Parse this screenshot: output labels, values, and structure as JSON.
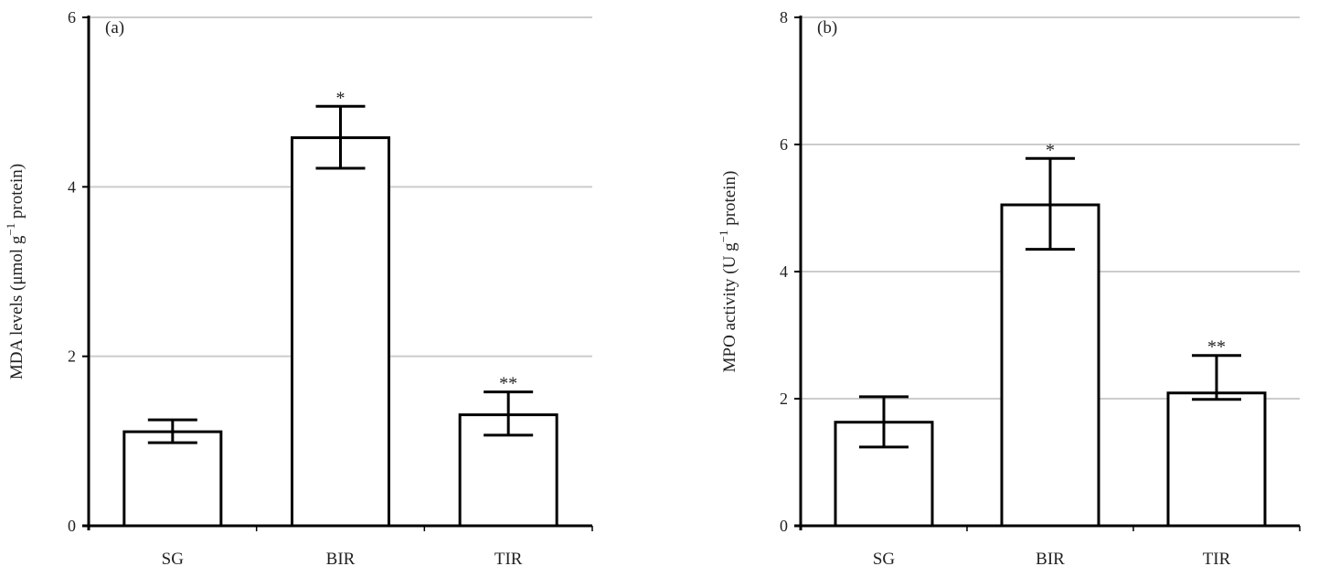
{
  "chart_data": [
    {
      "type": "bar",
      "panel_label": "(a)",
      "ylabel": "MDA levels (μmol g",
      "ylabel_sup": "−1",
      "ylabel_tail": " protein)",
      "categories": [
        "SG",
        "BIR",
        "TIR"
      ],
      "values": [
        1.11,
        4.58,
        1.31
      ],
      "error_upper": [
        1.25,
        4.95,
        1.58
      ],
      "error_lower": [
        0.98,
        4.22,
        1.07
      ],
      "annotations": [
        "",
        "*",
        "**"
      ],
      "ylim": [
        0,
        6
      ],
      "yticks": [
        0,
        2,
        4,
        6
      ],
      "grid": true,
      "colors": {
        "bar_fill": "#ffffff",
        "bar_stroke": "#000000",
        "grid": "#cccccc"
      }
    },
    {
      "type": "bar",
      "panel_label": "(b)",
      "ylabel": "MPO activity (U g",
      "ylabel_sup": "−1",
      "ylabel_tail": " protein)",
      "categories": [
        "SG",
        "BIR",
        "TIR"
      ],
      "values": [
        1.63,
        5.05,
        2.09
      ],
      "error_upper": [
        2.03,
        5.78,
        2.68
      ],
      "error_lower": [
        1.24,
        4.35,
        1.99
      ],
      "annotations": [
        "",
        "*",
        "**"
      ],
      "ylim": [
        0,
        8
      ],
      "yticks": [
        0,
        2,
        4,
        6,
        8
      ],
      "grid": true,
      "colors": {
        "bar_fill": "#ffffff",
        "bar_stroke": "#000000",
        "grid": "#cccccc"
      }
    }
  ]
}
